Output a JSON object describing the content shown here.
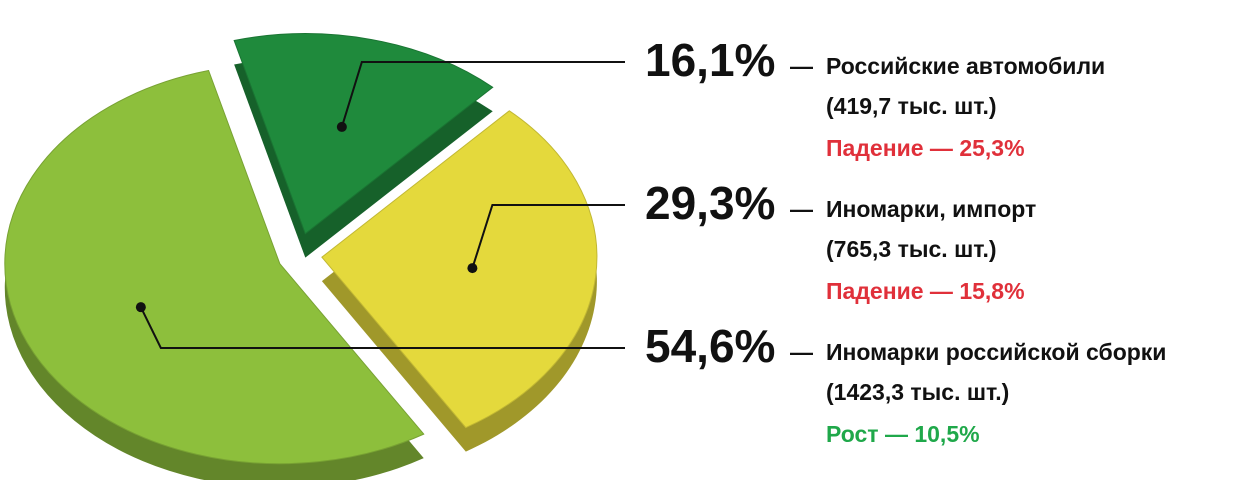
{
  "chart_data": {
    "type": "pie",
    "categories": [
      "Российские автомобили",
      "Иномарки, импорт",
      "Иномарки российской сборки"
    ],
    "values": [
      16.1,
      29.3,
      54.6
    ],
    "value_labels": [
      "16,1%",
      "29,3%",
      "54,6%"
    ],
    "separator": "—",
    "quantities": [
      "(419,7 тыс. шт.)",
      "(765,3 тыс. шт.)",
      "(1423,3 тыс. шт.)"
    ],
    "changes": [
      "Падение — 25,3%",
      "Падение — 15,8%",
      "Рост — 10,5%"
    ],
    "change_colors": [
      "#e0303a",
      "#e0303a",
      "#1fa84a"
    ],
    "colors": [
      "#1f8a3c",
      "#e4d93c",
      "#8dbf3c"
    ]
  }
}
